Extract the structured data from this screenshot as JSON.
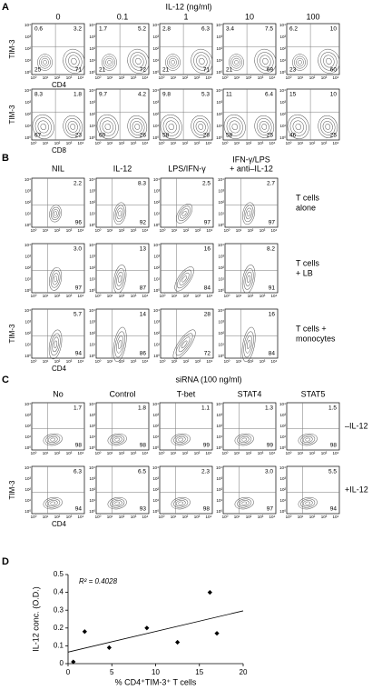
{
  "panel_labels": [
    "A",
    "B",
    "C",
    "D"
  ],
  "log_ticks": [
    "10⁰",
    "10¹",
    "10²",
    "10³",
    "10⁴"
  ],
  "panel_a": {
    "title": "IL-12 (ng/ml)",
    "columns": [
      "0",
      "0.1",
      "1",
      "10",
      "100"
    ],
    "y_label": "TIM-3",
    "rows": [
      {
        "x_label": "CD4",
        "quadrants": [
          [
            "0.6",
            "3.2",
            "25",
            "71"
          ],
          [
            "1.7",
            "5.2",
            "21",
            "72"
          ],
          [
            "2.8",
            "6.3",
            "21",
            "71"
          ],
          [
            "3.4",
            "7.5",
            "21",
            "69"
          ],
          [
            "6.2",
            "10",
            "23",
            "60"
          ]
        ]
      },
      {
        "x_label": "CD8",
        "quadrants": [
          [
            "8.3",
            "1.8",
            "67",
            "23"
          ],
          [
            "9.7",
            "4.2",
            "60",
            "26"
          ],
          [
            "9.8",
            "5.3",
            "58",
            "28"
          ],
          [
            "11",
            "6.4",
            "58",
            "25"
          ],
          [
            "15",
            "10",
            "46",
            "25"
          ]
        ]
      }
    ]
  },
  "panel_b": {
    "columns": [
      [
        "NIL"
      ],
      [
        "IL-12"
      ],
      [
        "LPS/IFN-γ"
      ],
      [
        "IFN-γ/LPS",
        "+ anti–IL-12"
      ]
    ],
    "row_labels": [
      [
        "T cells",
        "alone"
      ],
      [
        "T cells",
        "+ LB"
      ],
      [
        "T cells +",
        "monocytes"
      ]
    ],
    "y_label": "TIM-3",
    "x_label": "CD4",
    "quadrants": [
      [
        [
          "2.2",
          "96"
        ],
        [
          "8.3",
          "92"
        ],
        [
          "2.5",
          "97"
        ],
        [
          "2.7",
          "97"
        ]
      ],
      [
        [
          "3.0",
          "97"
        ],
        [
          "13",
          "87"
        ],
        [
          "16",
          "84"
        ],
        [
          "8.2",
          "91"
        ]
      ],
      [
        [
          "5.7",
          "94"
        ],
        [
          "14",
          "86"
        ],
        [
          "28",
          "72"
        ],
        [
          "16",
          "84"
        ]
      ]
    ]
  },
  "panel_c": {
    "title": "siRNA (100 ng/ml)",
    "columns": [
      "No",
      "Control",
      "T-bet",
      "STAT4",
      "STAT5"
    ],
    "row_labels": [
      "–IL-12",
      "+IL-12"
    ],
    "y_label": "TIM-3",
    "x_label": "CD4",
    "quadrants": [
      [
        [
          "1.7",
          "98"
        ],
        [
          "1.8",
          "98"
        ],
        [
          "1.1",
          "99"
        ],
        [
          "1.3",
          "99"
        ],
        [
          "1.5",
          "98"
        ]
      ],
      [
        [
          "6.3",
          "94"
        ],
        [
          "6.5",
          "93"
        ],
        [
          "2.3",
          "98"
        ],
        [
          "3.0",
          "97"
        ],
        [
          "5.5",
          "94"
        ]
      ]
    ]
  },
  "chart_data": {
    "type": "scatter",
    "x_label": "% CD4⁺TIM-3⁺ T cells",
    "y_label": "IL-12 conc. (O.D.)",
    "annotation": "R² = 0.4028",
    "x": [
      0.6,
      1.9,
      4.7,
      9,
      12.5,
      16.2,
      17
    ],
    "values": [
      0.01,
      0.18,
      0.09,
      0.2,
      0.12,
      0.4,
      0.17
    ],
    "color": "#000000",
    "trendline": true,
    "xlim": [
      0,
      20
    ],
    "ylim": [
      0,
      0.5
    ],
    "xticks": [
      0,
      5,
      10,
      15,
      20
    ],
    "yticks": [
      0,
      0.1,
      0.2,
      0.3,
      0.4,
      0.5
    ]
  }
}
